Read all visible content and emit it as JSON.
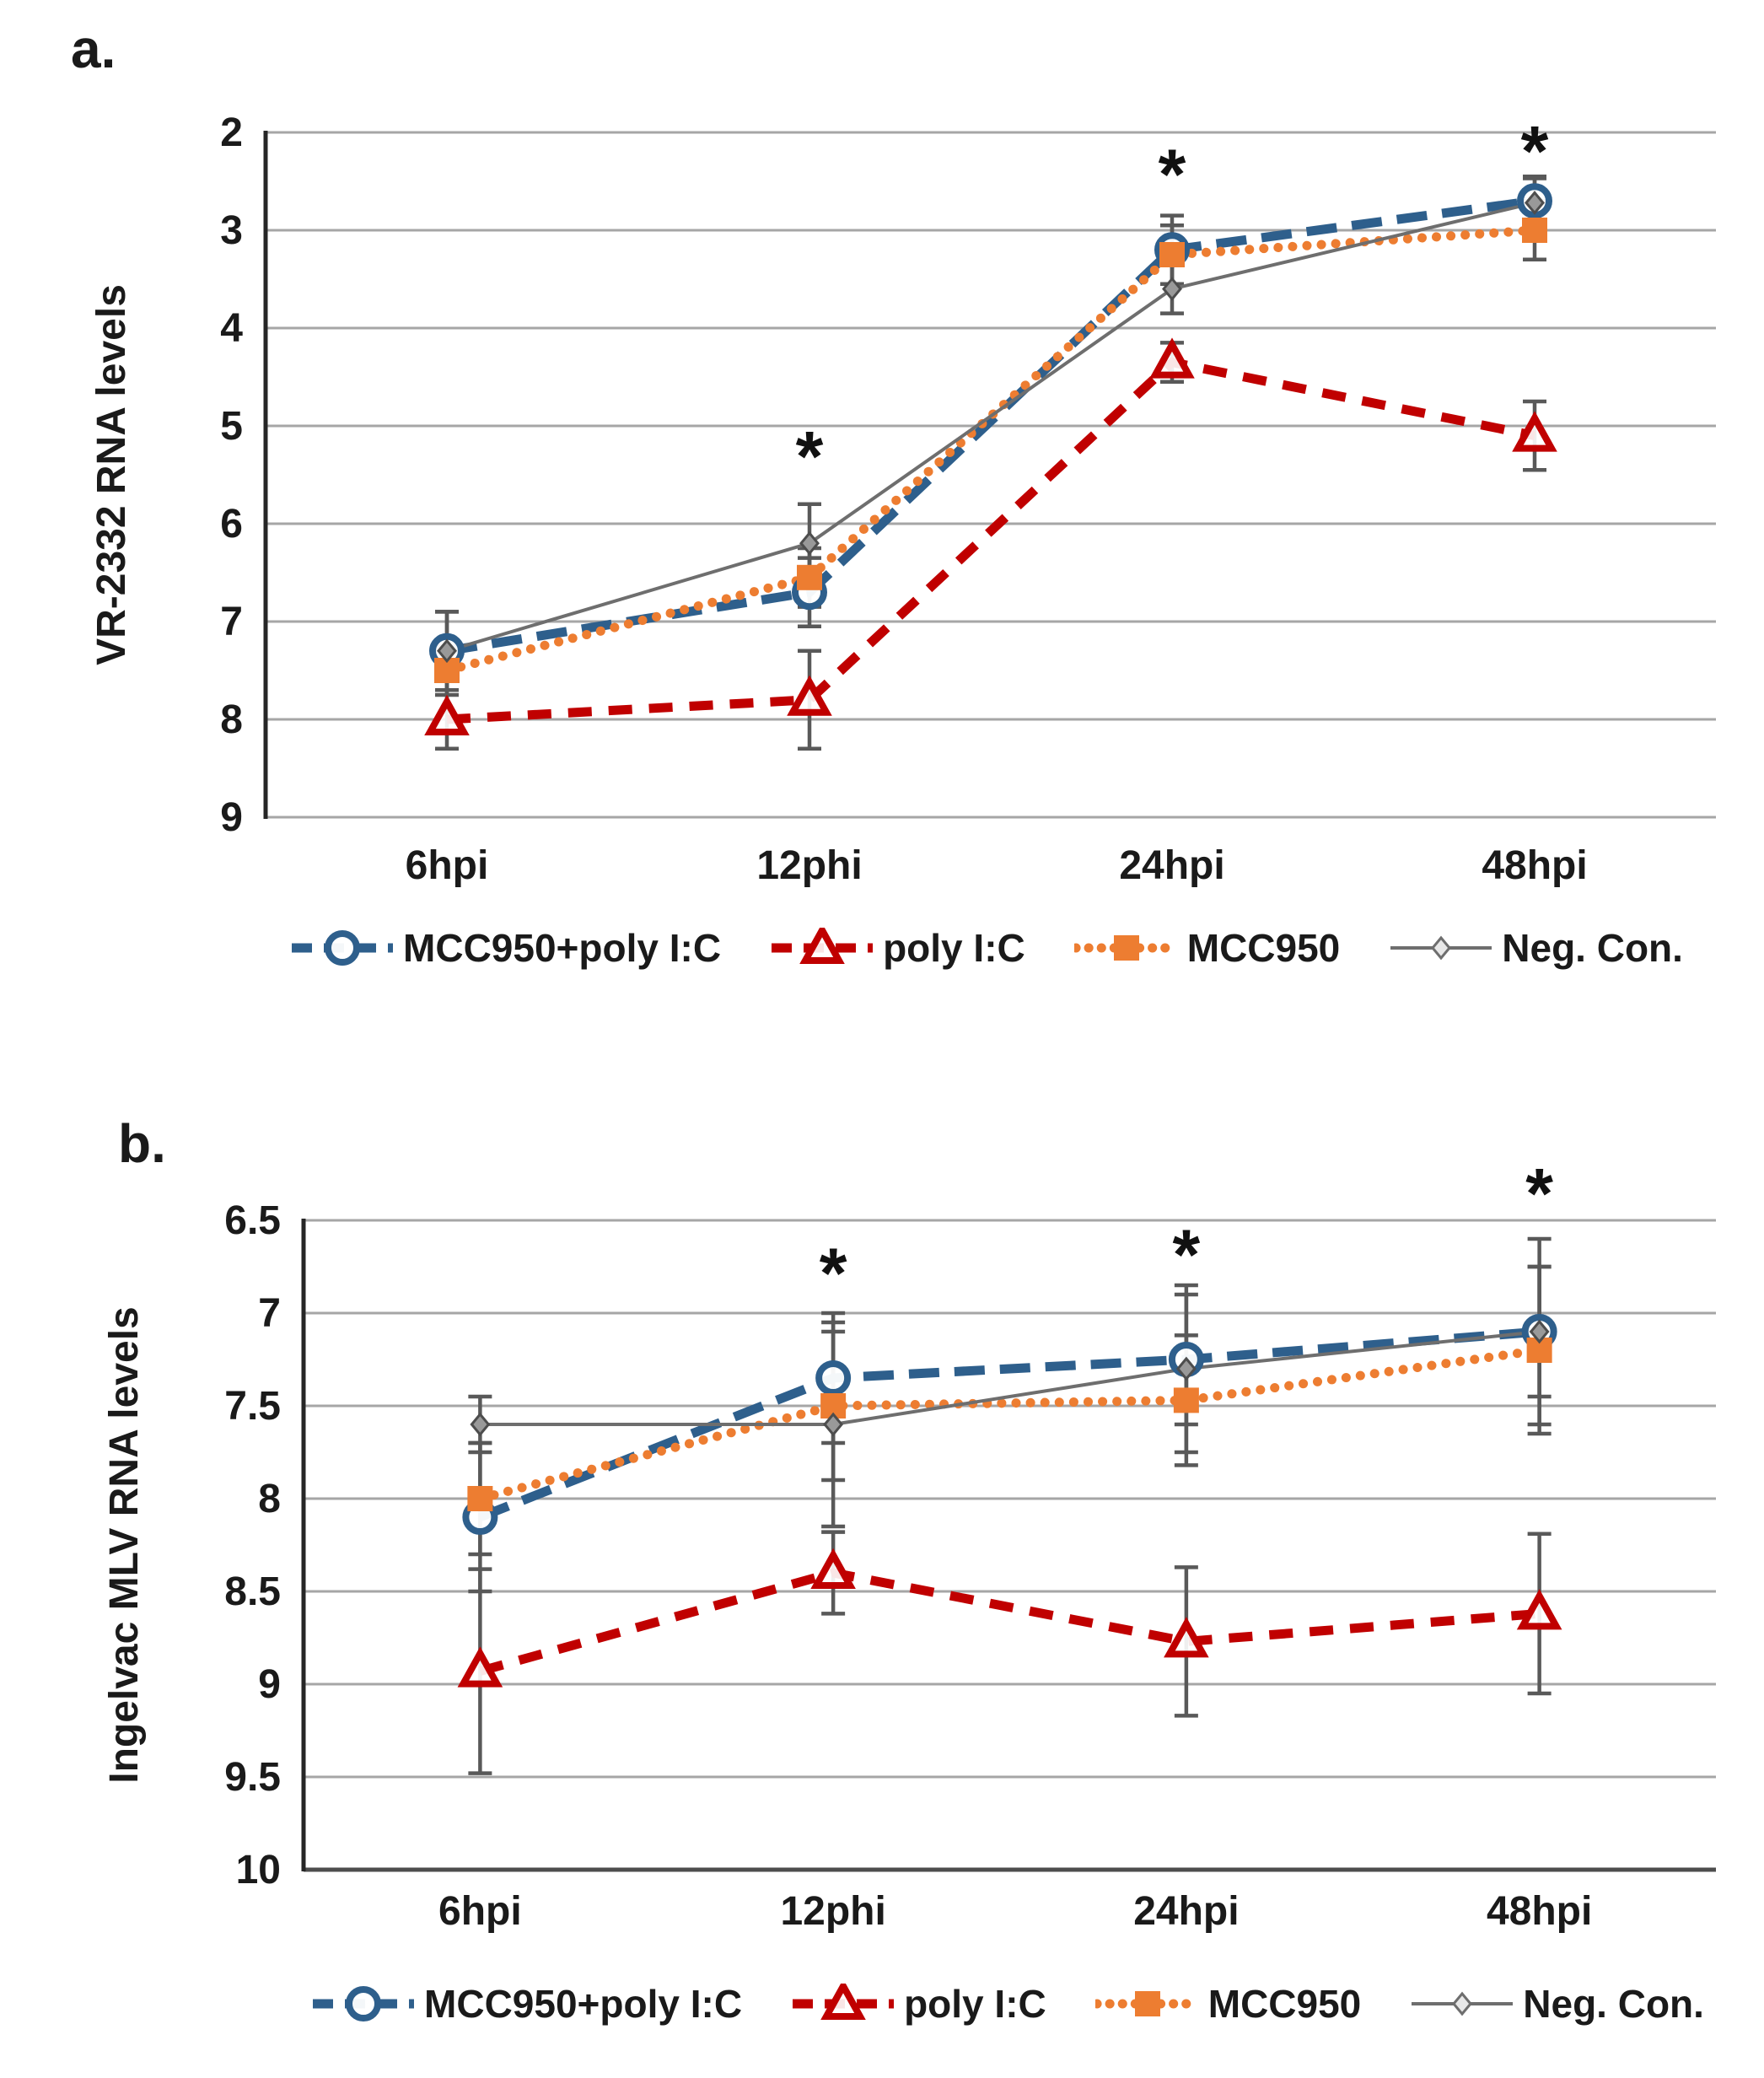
{
  "figure_type": "two-panel line chart with error bars",
  "styles": {
    "series_blue": "#2E5F8C",
    "series_red": "#C00000",
    "series_orange": "#ED7D31",
    "series_gray": "#6E6E6E",
    "error_bar_color": "#595959",
    "gridline_color": "#A6A6A6",
    "axis_color": "#262626",
    "text_color": "#1a1a1a"
  },
  "chart_data": [
    {
      "type": "line",
      "panel_label": "a.",
      "ylabel": "VR-2332 RNA levels",
      "xlabel": "",
      "categories": [
        "6hpi",
        "12phi",
        "24hpi",
        "48hpi"
      ],
      "y_axis": {
        "min": 2,
        "max": 9,
        "direction": "values increase downward (reversed axis)",
        "ticks": [
          2,
          3,
          4,
          5,
          6,
          7,
          8,
          9
        ],
        "tick_labels": [
          "2",
          "3",
          "4",
          "5",
          "6",
          "7",
          "8",
          "9"
        ]
      },
      "grid": "horizontal gridlines on",
      "legend_position": "bottom",
      "series": [
        {
          "name": "MCC950+poly I:C",
          "color_key": "series_blue",
          "line_style": "dashed",
          "marker": "open-circle",
          "values": [
            7.3,
            6.7,
            3.2,
            2.7
          ],
          "errors": [
            0.4,
            0.35,
            0.35,
            0.25
          ]
        },
        {
          "name": "poly I:C",
          "color_key": "series_red",
          "line_style": "dashed-short",
          "marker": "open-triangle",
          "values": [
            8.0,
            7.8,
            4.35,
            5.1
          ],
          "errors": [
            0.3,
            0.5,
            0.2,
            0.35
          ]
        },
        {
          "name": "MCC950",
          "color_key": "series_orange",
          "line_style": "dotted",
          "marker": "filled-square",
          "values": [
            7.5,
            6.55,
            3.25,
            3.0
          ],
          "errors": [
            0.25,
            0.3,
            0.3,
            0.3
          ]
        },
        {
          "name": "Neg. Con.",
          "color_key": "series_gray",
          "line_style": "solid",
          "marker": "small-diamond",
          "values": [
            7.3,
            6.2,
            3.6,
            2.72
          ],
          "errors": [
            0.4,
            0.4,
            0.25,
            0.25
          ]
        }
      ],
      "significance_asterisks": [
        {
          "category": "12phi",
          "value": 5.3
        },
        {
          "category": "24hpi",
          "value": 2.42
        },
        {
          "category": "48hpi",
          "value": 2.18
        }
      ]
    },
    {
      "type": "line",
      "panel_label": "b.",
      "ylabel": "Ingelvac MLV RNA levels",
      "xlabel": "",
      "categories": [
        "6hpi",
        "12phi",
        "24hpi",
        "48hpi"
      ],
      "y_axis": {
        "min": 6.5,
        "max": 10,
        "direction": "values increase downward (reversed axis)",
        "ticks": [
          6.5,
          7,
          7.5,
          8,
          8.5,
          9,
          9.5,
          10
        ],
        "tick_labels": [
          "6.5",
          "7",
          "7.5",
          "8",
          "8.5",
          "9",
          "9.5",
          "10"
        ]
      },
      "grid": "horizontal gridlines on",
      "legend_position": "bottom",
      "series": [
        {
          "name": "MCC950+poly I:C",
          "color_key": "series_blue",
          "line_style": "dashed",
          "marker": "open-circle",
          "values": [
            8.1,
            7.35,
            7.25,
            7.1
          ],
          "errors": [
            0.4,
            0.35,
            0.35,
            0.5
          ]
        },
        {
          "name": "poly I:C",
          "color_key": "series_red",
          "line_style": "dashed-short",
          "marker": "open-triangle",
          "values": [
            8.93,
            8.4,
            8.77,
            8.62
          ],
          "errors": [
            0.55,
            0.22,
            0.4,
            0.43
          ]
        },
        {
          "name": "MCC950",
          "color_key": "series_orange",
          "line_style": "dotted",
          "marker": "filled-square",
          "values": [
            8.0,
            7.5,
            7.47,
            7.2
          ],
          "errors": [
            0.3,
            0.4,
            0.35,
            0.45
          ]
        },
        {
          "name": "Neg. Con.",
          "color_key": "series_gray",
          "line_style": "solid",
          "marker": "small-diamond",
          "values": [
            7.6,
            7.6,
            7.3,
            7.1
          ],
          "errors": [
            0.15,
            0.55,
            0.45,
            0.35
          ]
        }
      ],
      "significance_asterisks": [
        {
          "category": "12phi",
          "value": 6.78
        },
        {
          "category": "24hpi",
          "value": 6.68
        },
        {
          "category": "48hpi",
          "value": 6.35
        }
      ]
    }
  ]
}
